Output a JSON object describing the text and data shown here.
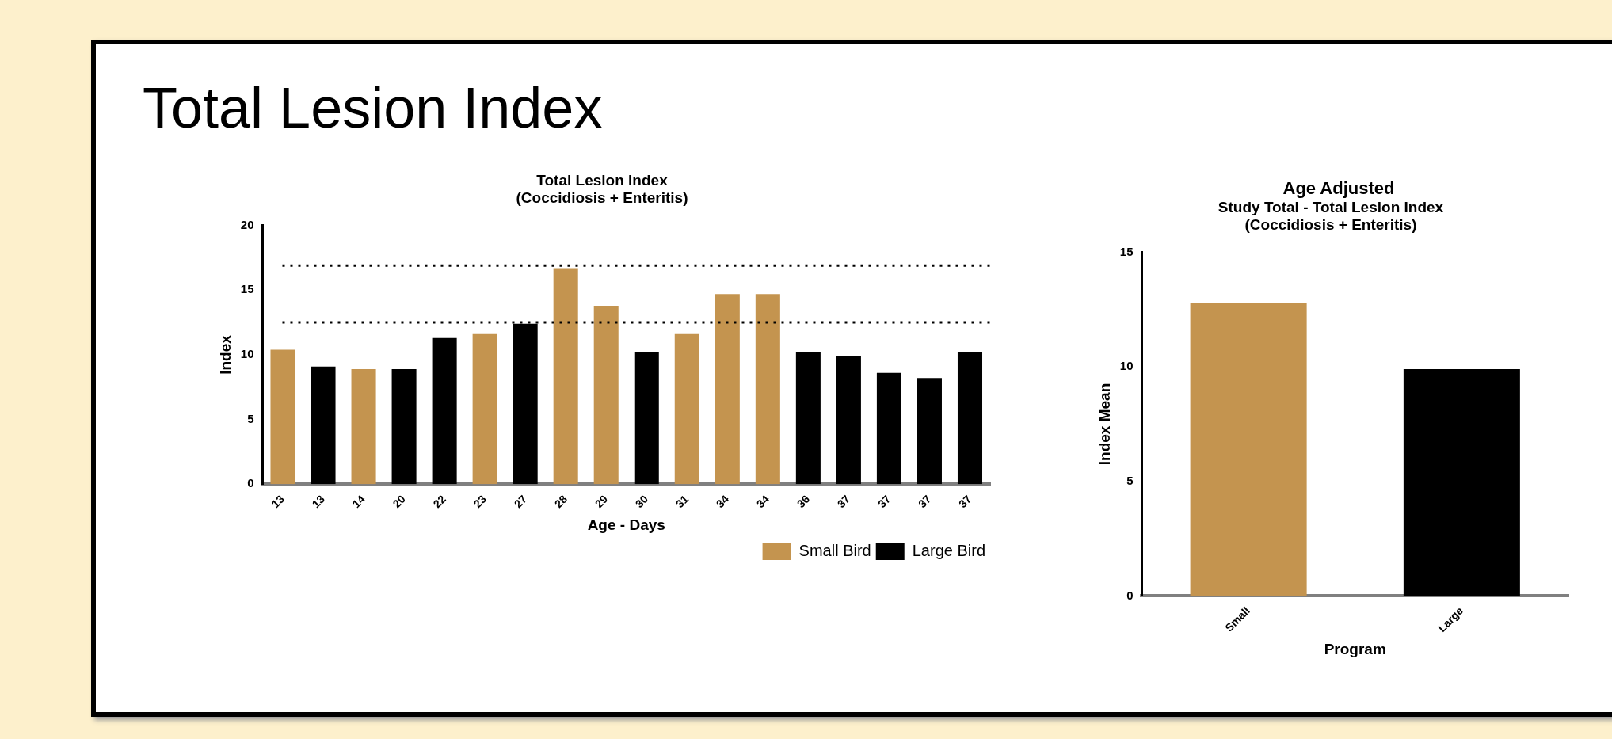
{
  "chart_data": [
    {
      "type": "bar",
      "title": "Total Lesion Index",
      "subtitle": "Total Lesion Index\n(Coccidiosis + Enteritis)",
      "xlabel": "Age - Days",
      "ylabel": "Index",
      "categories": [
        "13",
        "13",
        "14",
        "20",
        "22",
        "23",
        "27",
        "28",
        "29",
        "30",
        "31",
        "34",
        "34",
        "36",
        "37",
        "37",
        "37",
        "37"
      ],
      "series": [
        {
          "name": "Small Bird",
          "color": "#c4944f",
          "values": [
            10.4,
            null,
            8.9,
            null,
            null,
            11.6,
            null,
            16.7,
            13.8,
            null,
            11.6,
            14.7,
            14.7,
            null,
            null,
            null,
            null,
            null
          ]
        },
        {
          "name": "Large Bird",
          "color": "#000000",
          "values": [
            null,
            9.1,
            null,
            8.9,
            11.3,
            null,
            12.4,
            null,
            null,
            10.2,
            null,
            null,
            null,
            10.2,
            9.9,
            8.6,
            8.2,
            10.2
          ]
        }
      ],
      "ylim": [
        0,
        20
      ],
      "yticks": [
        0,
        5,
        10,
        15,
        20
      ],
      "ref_lines": [
        {
          "axis": "y",
          "value": 16.9,
          "line_style": "dotted"
        },
        {
          "axis": "y",
          "value": 12.5,
          "line_style": "dotted"
        }
      ],
      "grid": false,
      "legend": "bottom right"
    },
    {
      "type": "bar",
      "title": "Age Adjusted",
      "subtitle": "Study Total - Total Lesion Index\n(Coccidiosis + Enteritis)",
      "xlabel": "Program",
      "ylabel": "Index Mean",
      "categories": [
        "Small",
        "Large"
      ],
      "values": [
        12.8,
        9.9
      ],
      "colors": [
        "#c4944f",
        "#000000"
      ],
      "ylim": [
        0,
        15
      ],
      "yticks": [
        0,
        5,
        10,
        15
      ],
      "grid": false,
      "legend": false
    }
  ]
}
